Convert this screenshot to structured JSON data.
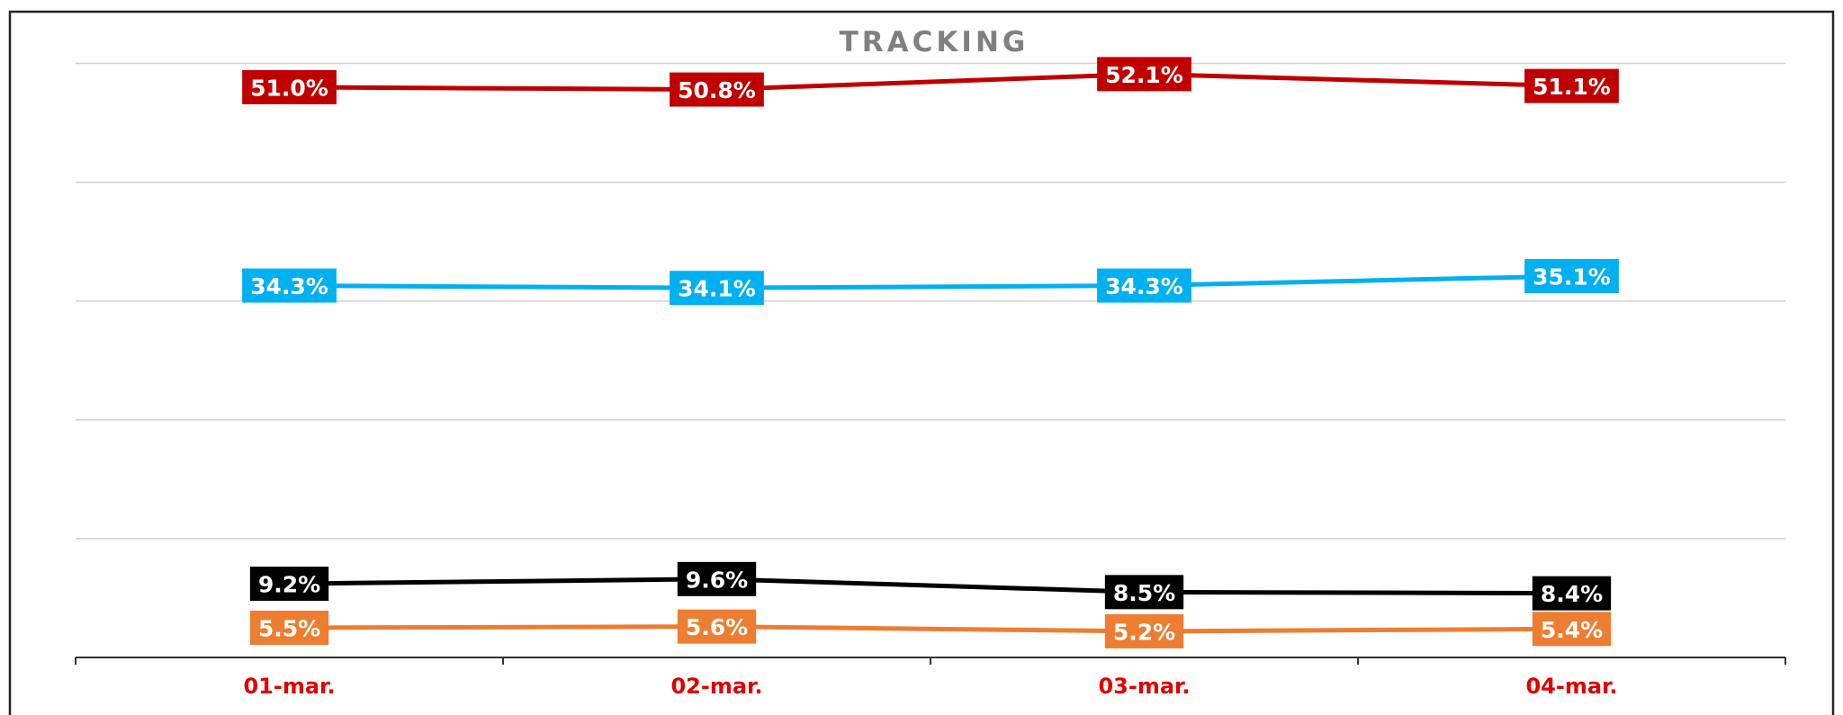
{
  "chart_data": {
    "type": "line",
    "title": "TRACKING",
    "categories": [
      "01-mar.",
      "02-mar.",
      "03-mar.",
      "04-mar."
    ],
    "ylim": [
      3,
      53
    ],
    "yticks": [
      3,
      13,
      23,
      33,
      43,
      53
    ],
    "grid": true,
    "series": [
      {
        "color": "#c00000",
        "values": [
          51.0,
          50.8,
          52.1,
          51.1
        ],
        "value_labels": [
          "51.0%",
          "50.8%",
          "52.1%",
          "51.1%"
        ]
      },
      {
        "color": "#00b0f0",
        "values": [
          34.3,
          34.1,
          34.3,
          35.1
        ],
        "value_labels": [
          "34.3%",
          "34.1%",
          "34.3%",
          "35.1%"
        ]
      },
      {
        "color": "#000000",
        "values": [
          9.2,
          9.6,
          8.5,
          8.4
        ],
        "value_labels": [
          "9.2%",
          "9.6%",
          "8.5%",
          "8.4%"
        ]
      },
      {
        "color": "#ed7d31",
        "values": [
          5.5,
          5.6,
          5.2,
          5.4
        ],
        "value_labels": [
          "5.5%",
          "5.6%",
          "5.2%",
          "5.4%"
        ]
      }
    ]
  }
}
